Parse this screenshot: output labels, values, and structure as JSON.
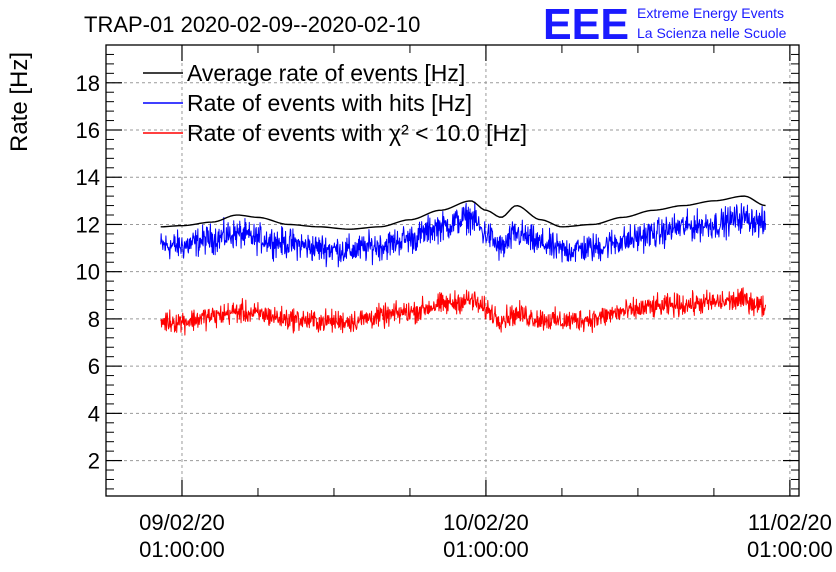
{
  "chart_data": {
    "type": "line",
    "title": "TRAP-01 2020-02-09--2020-02-10",
    "ylabel": "Rate [Hz]",
    "xlabel": "",
    "ylim": [
      0.5,
      19.6
    ],
    "xlim": [
      -0.25,
      2.03
    ],
    "yticks": [
      2,
      4,
      6,
      8,
      10,
      12,
      14,
      16,
      18
    ],
    "ytick_labels": [
      "2",
      "4",
      "6",
      "8",
      "10",
      "12",
      "14",
      "16",
      "18"
    ],
    "xticks": [
      0,
      1,
      2
    ],
    "xtick_labels": [
      {
        "date": "09/02/20",
        "time": "01:00:00"
      },
      {
        "date": "10/02/20",
        "time": "01:00:00"
      },
      {
        "date": "11/02/20",
        "time": "01:00:00"
      }
    ],
    "grid": true,
    "legend": {
      "placement": "top-left",
      "entries": [
        {
          "label": "Average rate of events [Hz]",
          "color": "#000000"
        },
        {
          "label": "Rate of events with hits [Hz]",
          "color": "#0000ff"
        },
        {
          "label": "Rate of events with χ² < 10.0 [Hz]",
          "color": "#ff0000"
        }
      ]
    },
    "series": [
      {
        "name": "Average rate of events [Hz]",
        "color": "#000000",
        "noise": 0,
        "x": [
          -0.07,
          0.0,
          0.1,
          0.18,
          0.25,
          0.35,
          0.45,
          0.55,
          0.65,
          0.75,
          0.85,
          0.95,
          1.0,
          1.05,
          1.1,
          1.18,
          1.25,
          1.35,
          1.45,
          1.55,
          1.65,
          1.75,
          1.85,
          1.92
        ],
        "y": [
          11.9,
          11.95,
          12.1,
          12.4,
          12.3,
          12.0,
          11.9,
          11.8,
          11.9,
          12.2,
          12.6,
          13.0,
          12.6,
          12.3,
          12.8,
          12.2,
          11.9,
          12.0,
          12.3,
          12.6,
          12.8,
          13.0,
          13.2,
          12.8
        ]
      },
      {
        "name": "Rate of events with hits [Hz]",
        "color": "#0000ff",
        "noise": 0.9,
        "x": [
          -0.07,
          0.0,
          0.1,
          0.18,
          0.25,
          0.35,
          0.45,
          0.55,
          0.65,
          0.75,
          0.85,
          0.95,
          1.0,
          1.05,
          1.1,
          1.18,
          1.25,
          1.35,
          1.45,
          1.55,
          1.65,
          1.75,
          1.85,
          1.92
        ],
        "y": [
          11.1,
          11.1,
          11.4,
          11.6,
          11.4,
          11.2,
          11.0,
          10.9,
          11.1,
          11.4,
          11.9,
          12.3,
          11.6,
          11.0,
          11.6,
          11.2,
          10.9,
          11.0,
          11.3,
          11.6,
          11.9,
          12.0,
          12.3,
          12.0
        ]
      },
      {
        "name": "Rate of events with χ² < 10.0 [Hz]",
        "color": "#ff0000",
        "noise": 0.7,
        "x": [
          -0.07,
          0.0,
          0.1,
          0.18,
          0.25,
          0.35,
          0.45,
          0.55,
          0.65,
          0.75,
          0.85,
          0.95,
          1.0,
          1.05,
          1.1,
          1.18,
          1.25,
          1.35,
          1.45,
          1.55,
          1.65,
          1.75,
          1.85,
          1.92
        ],
        "y": [
          7.9,
          7.9,
          8.1,
          8.3,
          8.2,
          8.0,
          7.9,
          7.9,
          8.1,
          8.3,
          8.6,
          8.8,
          8.4,
          8.0,
          8.2,
          8.0,
          7.9,
          8.0,
          8.3,
          8.5,
          8.6,
          8.7,
          8.8,
          8.5
        ]
      }
    ]
  },
  "logo": {
    "mark": "EEE",
    "line1": "Extreme Energy Events",
    "line2": "La Scienza nelle Scuole",
    "color": "#1a1aff"
  }
}
